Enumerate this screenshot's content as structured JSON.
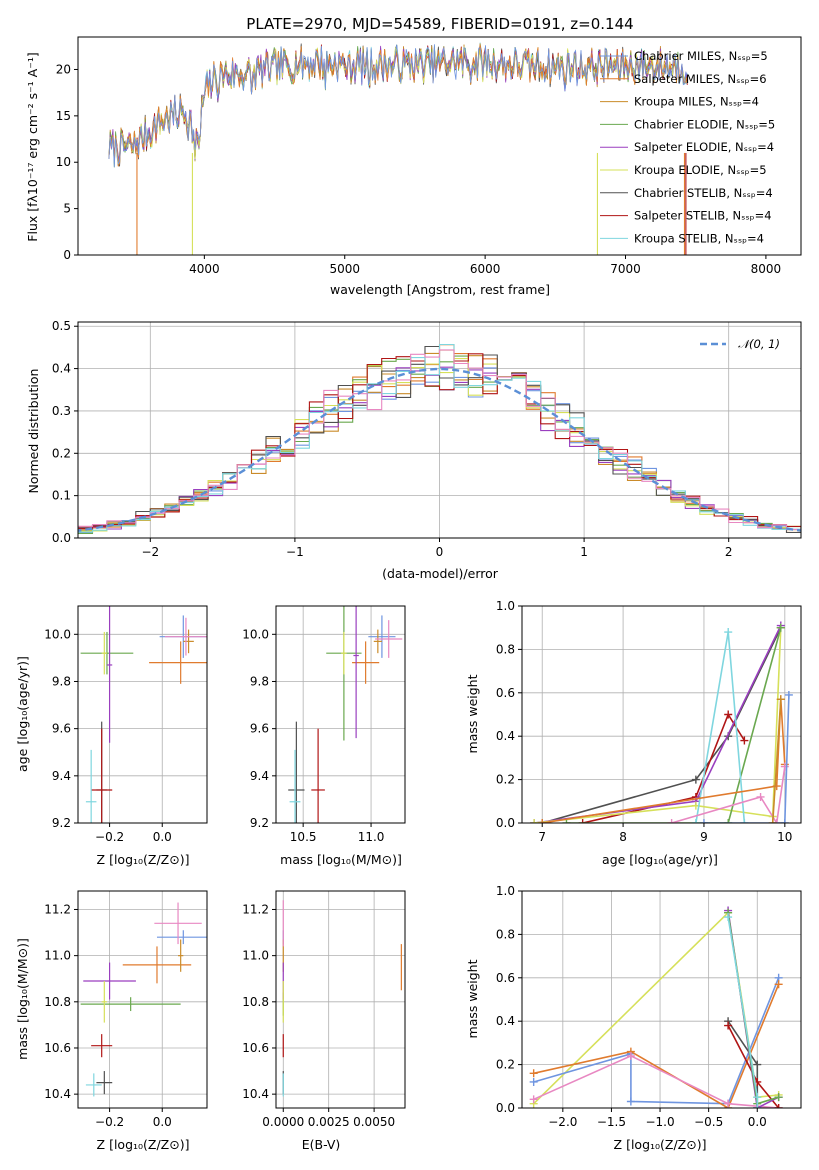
{
  "colors": {
    "grid": "#b0b0b0",
    "gauss": "#5b8fd6",
    "palette": [
      "#6f95e0",
      "#e07b2e",
      "#ca8b2a",
      "#6aa84f",
      "#9a3fbf",
      "#d6e05a",
      "#505050",
      "#b01515",
      "#7fd6df",
      "#e888c2"
    ]
  },
  "charts": {
    "spectrum": {
      "type": "line",
      "title": "PLATE=2970, MJD=54589, FIBERID=0191, z=0.144",
      "xlabel": "wavelength [Angstrom, rest frame]",
      "ylabel": "Flux [fλ10⁻¹⁷ erg cm⁻² s⁻¹ A⁻¹]",
      "xlim": [
        3100,
        8250
      ],
      "ylim": [
        0,
        23.5
      ],
      "xticks": [
        4000,
        5000,
        6000,
        7000,
        8000
      ],
      "yticks": [
        0,
        5,
        10,
        15,
        20
      ],
      "legend_position": "upper-right",
      "legend": [
        "Chabrier MILES, Nₛₛₚ=5",
        "Salpeter MILES, Nₛₛₚ=6",
        "Kroupa MILES, Nₛₛₚ=4",
        "Chabrier ELODIE, Nₛₛₚ=5",
        "Salpeter ELODIE, Nₛₛₚ=4",
        "Kroupa ELODIE, Nₛₛₚ=5",
        "Chabrier STELIB, Nₛₛₚ=4",
        "Salpeter STELIB, Nₛₛₚ=4",
        "Kroupa STELIB, Nₛₛₚ=4"
      ],
      "legend_colors": [
        "#6f95e0",
        "#e07b2e",
        "#ca8b2a",
        "#6aa84f",
        "#9a3fbf",
        "#d6e05a",
        "#505050",
        "#b01515",
        "#7fd6df"
      ],
      "continuum": [
        [
          3320,
          11.5
        ],
        [
          3500,
          11.8
        ],
        [
          3700,
          14.5
        ],
        [
          3850,
          15.5
        ],
        [
          3950,
          13
        ],
        [
          4000,
          17.5
        ],
        [
          4100,
          19.5
        ],
        [
          4300,
          19.5
        ],
        [
          4500,
          20.2
        ],
        [
          4800,
          20.8
        ],
        [
          5000,
          20.5
        ],
        [
          5200,
          20.5
        ],
        [
          5500,
          20.5
        ],
        [
          5800,
          20.8
        ],
        [
          6000,
          20.8
        ],
        [
          6200,
          20.5
        ],
        [
          6500,
          20.3
        ],
        [
          6800,
          20.3
        ],
        [
          7000,
          20.4
        ],
        [
          7200,
          20.4
        ],
        [
          7440,
          20.3
        ]
      ]
    },
    "residuals": {
      "type": "line",
      "xlabel": "(data-model)/error",
      "ylabel": "Normed distribution",
      "xlim": [
        -2.5,
        2.5
      ],
      "ylim": [
        0,
        0.51
      ],
      "xticks": [
        -2,
        -1,
        0,
        1,
        2
      ],
      "yticks": [
        0.0,
        0.1,
        0.2,
        0.3,
        0.4,
        0.5
      ],
      "legend": "𝒩(0, 1)",
      "legend_position": "upper-right"
    },
    "age_vs_z": {
      "type": "scatter",
      "xlabel": "Z [log₁₀(Z/Z⊙)]",
      "ylabel": "age  [log₁₀(age/yr)]",
      "xlim": [
        -0.32,
        0.17
      ],
      "ylim": [
        9.2,
        10.12
      ],
      "xticks": [
        -0.2,
        0.0
      ],
      "yticks": [
        9.2,
        9.4,
        9.6,
        9.8,
        10.0
      ],
      "points": [
        {
          "c": 0,
          "x": 0.08,
          "y": 9.99,
          "xe": 0.09,
          "ye": 0.09
        },
        {
          "c": 1,
          "x": 0.07,
          "y": 9.88,
          "xe": 0.12,
          "ye": 0.09
        },
        {
          "c": 2,
          "x": 0.1,
          "y": 9.97,
          "xe": 0.02,
          "ye": 0.05
        },
        {
          "c": 3,
          "x": -0.21,
          "y": 9.92,
          "xe": 0.1,
          "ye": 0.09
        },
        {
          "c": 4,
          "x": -0.2,
          "y": 9.87,
          "xe": 0.01,
          "ye": 0.33
        },
        {
          "c": 5,
          "x": -0.22,
          "y": 9.92,
          "xe": 0.01,
          "ye": 0.09
        },
        {
          "c": 6,
          "x": -0.23,
          "y": 9.34,
          "xe": 0.02,
          "ye": 0.29
        },
        {
          "c": 7,
          "x": -0.23,
          "y": 9.34,
          "xe": 0.04,
          "ye": 0.26
        },
        {
          "c": 8,
          "x": -0.27,
          "y": 9.29,
          "xe": 0.02,
          "ye": 0.22
        },
        {
          "c": 9,
          "x": 0.09,
          "y": 9.99,
          "xe": 0.08,
          "ye": 0.08
        }
      ]
    },
    "age_vs_mass": {
      "type": "scatter",
      "xlabel": "mass [log₁₀(M/M⊙)]",
      "ylabel": "",
      "xlim": [
        10.3,
        11.25
      ],
      "ylim": [
        9.2,
        10.12
      ],
      "xticks": [
        10.5,
        11.0
      ],
      "yticks": [
        9.2,
        9.4,
        9.6,
        9.8,
        10.0
      ],
      "points": [
        {
          "c": 0,
          "x": 11.08,
          "y": 9.99,
          "xe": 0.1,
          "ye": 0.09
        },
        {
          "c": 1,
          "x": 10.96,
          "y": 9.88,
          "xe": 0.1,
          "ye": 0.09
        },
        {
          "c": 2,
          "x": 11.05,
          "y": 9.97,
          "xe": 0.03,
          "ye": 0.05
        },
        {
          "c": 3,
          "x": 10.8,
          "y": 9.92,
          "xe": 0.13,
          "ye": 0.37
        },
        {
          "c": 4,
          "x": 10.89,
          "y": 9.91,
          "xe": 0.02,
          "ye": 0.35
        },
        {
          "c": 5,
          "x": 10.8,
          "y": 9.92,
          "xe": 0.02,
          "ye": 0.09
        },
        {
          "c": 6,
          "x": 10.45,
          "y": 9.34,
          "xe": 0.06,
          "ye": 0.29
        },
        {
          "c": 7,
          "x": 10.61,
          "y": 9.34,
          "xe": 0.05,
          "ye": 0.26
        },
        {
          "c": 8,
          "x": 10.44,
          "y": 9.29,
          "xe": 0.04,
          "ye": 0.22
        },
        {
          "c": 9,
          "x": 11.13,
          "y": 9.98,
          "xe": 0.1,
          "ye": 0.08
        }
      ]
    },
    "weight_vs_age": {
      "type": "line",
      "xlabel": "age  [log₁₀(age/yr)]",
      "ylabel": "mass weight",
      "xlim": [
        6.75,
        10.2
      ],
      "ylim": [
        0,
        1.0
      ],
      "xticks": [
        7,
        8,
        9,
        10
      ],
      "yticks": [
        0.0,
        0.2,
        0.4,
        0.6,
        0.8,
        1.0
      ],
      "series": [
        {
          "c": 6,
          "points": [
            [
              7.0,
              0.0
            ],
            [
              8.9,
              0.2
            ],
            [
              9.3,
              0.4
            ],
            [
              9.95,
              0.9
            ]
          ]
        },
        {
          "c": 7,
          "points": [
            [
              7.5,
              0.0
            ],
            [
              8.9,
              0.12
            ],
            [
              9.3,
              0.5
            ],
            [
              9.5,
              0.38
            ]
          ]
        },
        {
          "c": 4,
          "points": [
            [
              6.9,
              0.0
            ],
            [
              8.9,
              0.1
            ],
            [
              9.95,
              0.91
            ]
          ]
        },
        {
          "c": 5,
          "points": [
            [
              6.9,
              0.0
            ],
            [
              8.9,
              0.08
            ],
            [
              9.85,
              0.03
            ],
            [
              9.95,
              0.9
            ]
          ]
        },
        {
          "c": 3,
          "points": [
            [
              7.3,
              0.0
            ],
            [
              9.3,
              0.0
            ],
            [
              9.95,
              0.9
            ]
          ]
        },
        {
          "c": 8,
          "points": [
            [
              8.9,
              0.0
            ],
            [
              9.3,
              0.88
            ],
            [
              9.5,
              0.0
            ]
          ]
        },
        {
          "c": 1,
          "points": [
            [
              7.0,
              0.0
            ],
            [
              9.9,
              0.17
            ],
            [
              9.95,
              0.57
            ],
            [
              10.0,
              0.27
            ]
          ]
        },
        {
          "c": 9,
          "points": [
            [
              8.6,
              0.0
            ],
            [
              9.7,
              0.12
            ],
            [
              9.9,
              0.0
            ],
            [
              10.0,
              0.26
            ]
          ]
        },
        {
          "c": 0,
          "points": [
            [
              9.0,
              0.0
            ],
            [
              10.0,
              0.0
            ],
            [
              10.05,
              0.59
            ]
          ]
        },
        {
          "c": 2,
          "points": [
            [
              9.85,
              0.0
            ],
            [
              9.95,
              0.57
            ]
          ]
        }
      ]
    },
    "mass_vs_z": {
      "type": "scatter",
      "xlabel": "Z [log₁₀(Z/Z⊙)]",
      "ylabel": "mass [log₁₀(M/M⊙)]",
      "xlim": [
        -0.32,
        0.17
      ],
      "ylim": [
        10.34,
        11.28
      ],
      "xticks": [
        -0.2,
        0.0
      ],
      "yticks": [
        10.4,
        10.6,
        10.8,
        11.0,
        11.2
      ],
      "points": [
        {
          "c": 0,
          "x": 0.08,
          "y": 11.08,
          "xe": 0.1,
          "ye": 0.03
        },
        {
          "c": 1,
          "x": -0.02,
          "y": 10.96,
          "xe": 0.13,
          "ye": 0.08
        },
        {
          "c": 2,
          "x": 0.07,
          "y": 11.0,
          "xe": 0.01,
          "ye": 0.07
        },
        {
          "c": 3,
          "x": -0.12,
          "y": 10.79,
          "xe": 0.19,
          "ye": 0.03
        },
        {
          "c": 4,
          "x": -0.2,
          "y": 10.89,
          "xe": 0.1,
          "ye": 0.08
        },
        {
          "c": 5,
          "x": -0.22,
          "y": 10.8,
          "xe": 0.01,
          "ye": 0.09
        },
        {
          "c": 6,
          "x": -0.22,
          "y": 10.45,
          "xe": 0.03,
          "ye": 0.05
        },
        {
          "c": 7,
          "x": -0.23,
          "y": 10.61,
          "xe": 0.04,
          "ye": 0.05
        },
        {
          "c": 8,
          "x": -0.26,
          "y": 10.44,
          "xe": 0.03,
          "ye": 0.05
        },
        {
          "c": 9,
          "x": 0.06,
          "y": 11.14,
          "xe": 0.09,
          "ye": 0.09
        }
      ]
    },
    "mass_vs_ebv": {
      "type": "scatter",
      "xlabel": "E(B-V)",
      "ylabel": "",
      "xlim": [
        -0.0004,
        0.0067
      ],
      "ylim": [
        10.34,
        11.28
      ],
      "xticks": [
        0.0,
        0.0025,
        0.005
      ],
      "xticklabels": [
        "0.0000",
        "0.0025",
        "0.0050"
      ],
      "yticks": [
        10.4,
        10.6,
        10.8,
        11.0,
        11.2
      ],
      "points": [
        {
          "c": 0,
          "x": 0.0,
          "y": 11.08,
          "xe": 0.0,
          "ye": 0.03
        },
        {
          "c": 1,
          "x": 0.0065,
          "y": 10.95,
          "xe": 0.0,
          "ye": 0.1
        },
        {
          "c": 2,
          "x": 0.0,
          "y": 11.0,
          "xe": 0.0,
          "ye": 0.07
        },
        {
          "c": 3,
          "x": 0.0,
          "y": 10.79,
          "xe": 0.0,
          "ye": 0.05
        },
        {
          "c": 4,
          "x": 0.0,
          "y": 10.89,
          "xe": 0.0,
          "ye": 0.08
        },
        {
          "c": 5,
          "x": 0.0,
          "y": 10.8,
          "xe": 0.0,
          "ye": 0.09
        },
        {
          "c": 6,
          "x": 0.0,
          "y": 10.45,
          "xe": 0.0,
          "ye": 0.05
        },
        {
          "c": 7,
          "x": 0.0,
          "y": 10.61,
          "xe": 0.0,
          "ye": 0.05
        },
        {
          "c": 8,
          "x": 0.0,
          "y": 10.44,
          "xe": 0.0,
          "ye": 0.05
        },
        {
          "c": 9,
          "x": 0.0,
          "y": 11.14,
          "xe": 0.0,
          "ye": 0.1
        }
      ]
    },
    "weight_vs_z": {
      "type": "line",
      "xlabel": "Z [log₁₀(Z/Z⊙)]",
      "ylabel": "mass weight",
      "xlim": [
        -2.42,
        0.45
      ],
      "ylim": [
        0,
        1.0
      ],
      "xticks": [
        -2.0,
        -1.5,
        -1.0,
        -0.5,
        0.0
      ],
      "yticks": [
        0.0,
        0.2,
        0.4,
        0.6,
        0.8,
        1.0
      ],
      "series": [
        {
          "c": 5,
          "points": [
            [
              -2.3,
              0.02
            ],
            [
              -0.3,
              0.9
            ],
            [
              0.0,
              0.05
            ],
            [
              0.22,
              0.06
            ]
          ]
        },
        {
          "c": 0,
          "points": [
            [
              -2.3,
              0.12
            ],
            [
              -1.3,
              0.25
            ],
            [
              -1.3,
              0.03
            ],
            [
              -0.3,
              0.02
            ],
            [
              0.22,
              0.6
            ]
          ]
        },
        {
          "c": 1,
          "points": [
            [
              -2.3,
              0.16
            ],
            [
              -1.3,
              0.26
            ],
            [
              -0.3,
              0.0
            ],
            [
              0.22,
              0.57
            ]
          ]
        },
        {
          "c": 9,
          "points": [
            [
              -2.3,
              0.04
            ],
            [
              -1.3,
              0.24
            ],
            [
              -0.3,
              0.02
            ],
            [
              0.22,
              0.0
            ]
          ]
        },
        {
          "c": 6,
          "points": [
            [
              -0.3,
              0.4
            ],
            [
              0.0,
              0.2
            ],
            [
              0.0,
              0.0
            ]
          ]
        },
        {
          "c": 7,
          "points": [
            [
              -0.3,
              0.38
            ],
            [
              0.0,
              0.12
            ],
            [
              0.22,
              0.0
            ]
          ]
        },
        {
          "c": 4,
          "points": [
            [
              -0.3,
              0.91
            ],
            [
              0.0,
              0.0
            ],
            [
              0.22,
              0.05
            ]
          ]
        },
        {
          "c": 3,
          "points": [
            [
              -0.3,
              0.9
            ],
            [
              0.0,
              0.02
            ],
            [
              0.22,
              0.05
            ]
          ]
        },
        {
          "c": 8,
          "points": [
            [
              -0.3,
              0.88
            ],
            [
              0.0,
              0.05
            ],
            [
              0.0,
              0.0
            ]
          ]
        }
      ]
    }
  }
}
